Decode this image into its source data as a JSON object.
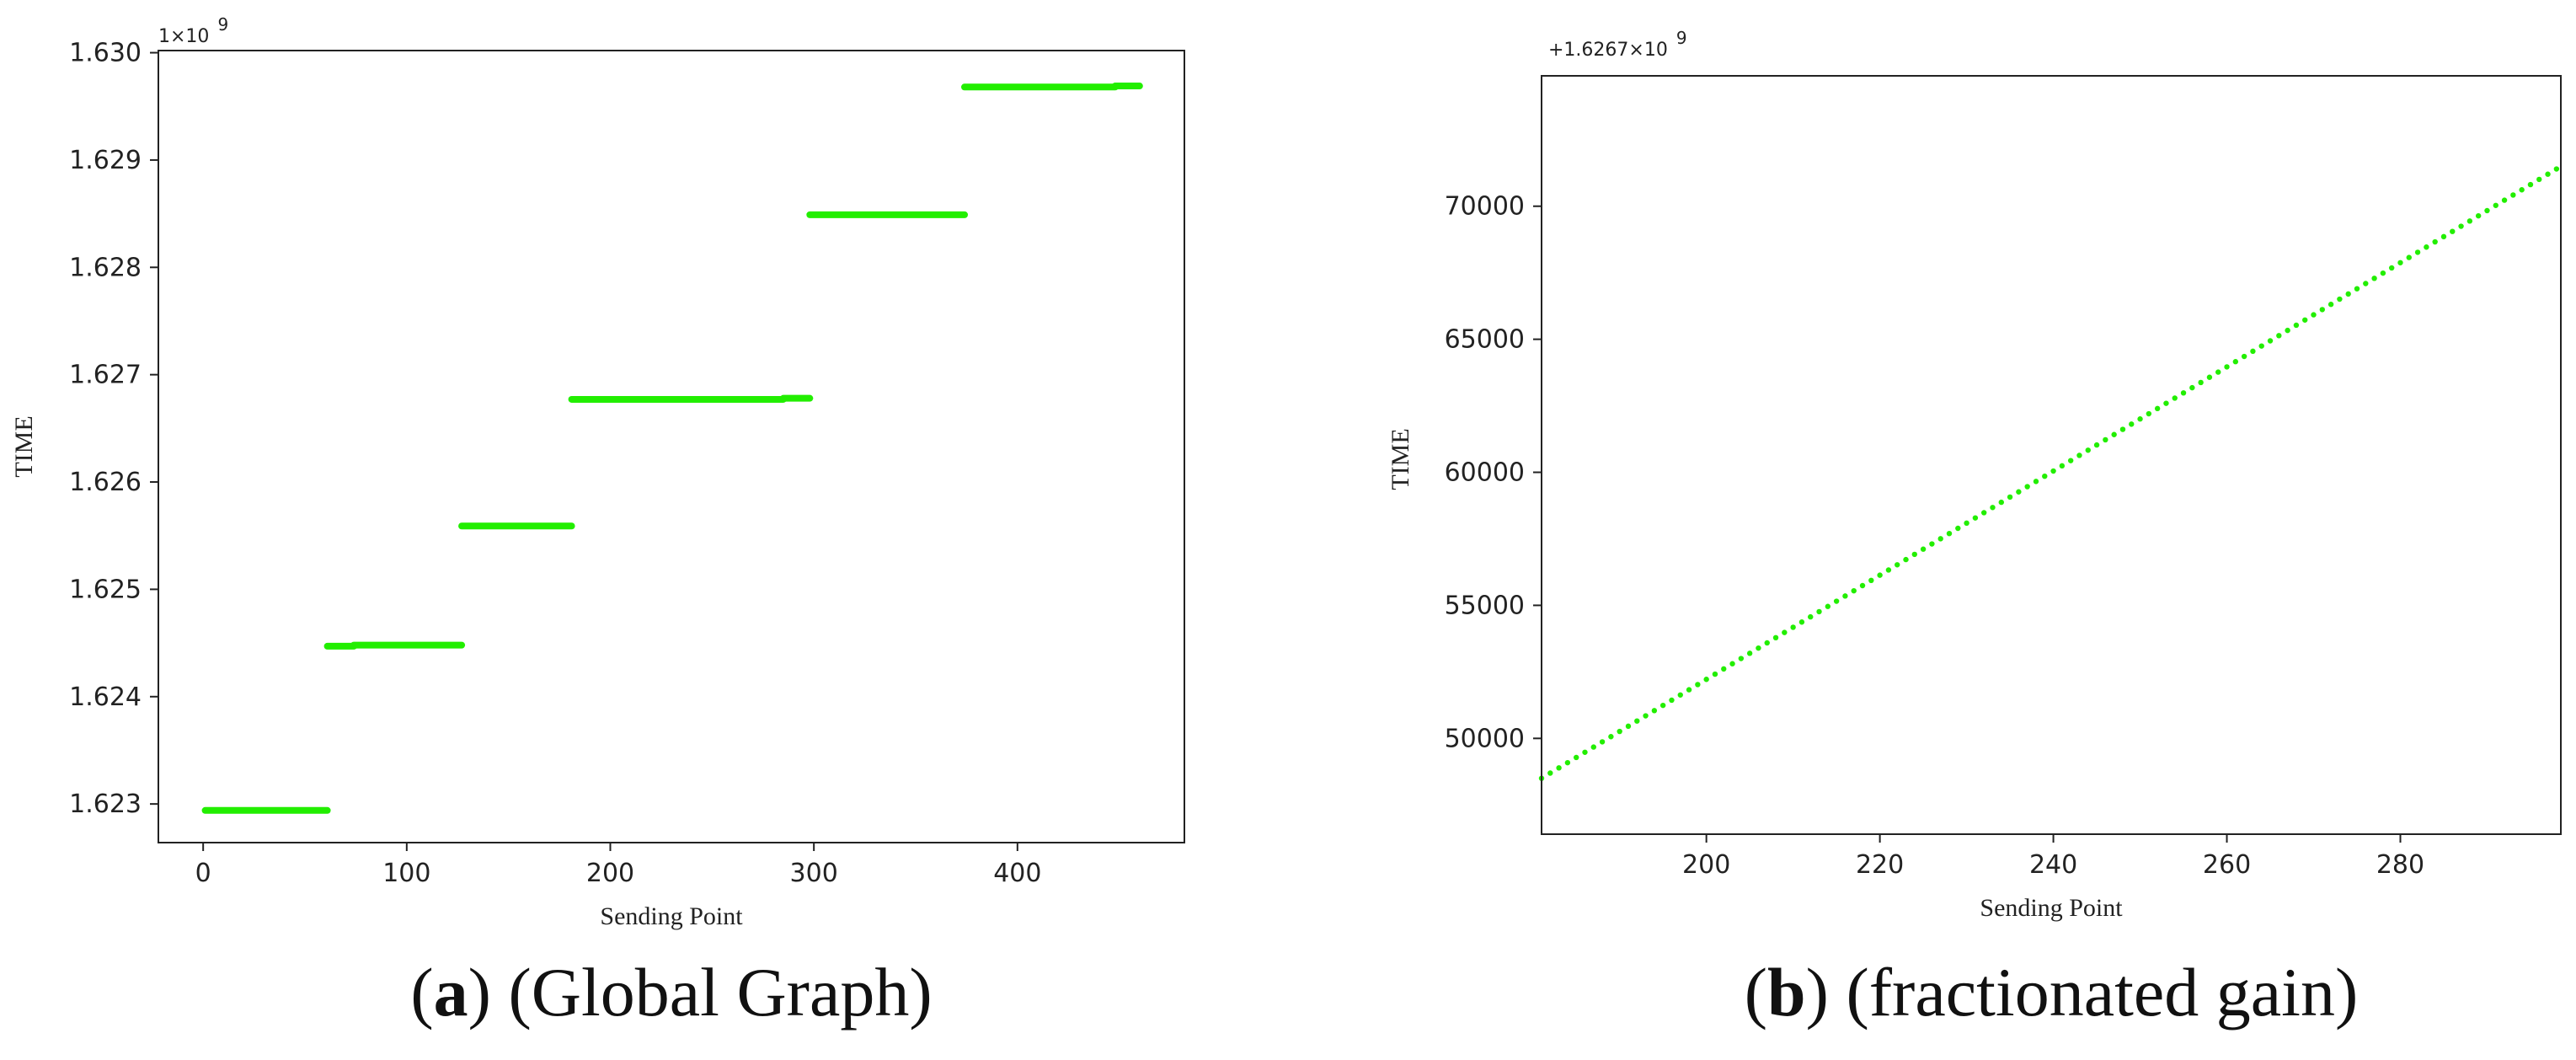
{
  "chart_data": [
    {
      "type": "scatter",
      "caption": {
        "letter": "a",
        "open": "(",
        "close": ")",
        "text": " (Global Graph)"
      },
      "offset_text": {
        "base": "1×10",
        "exp": "9"
      },
      "xlabel": "Sending Point",
      "ylabel": "TIME",
      "xlim": [
        -22,
        482
      ],
      "ylim": [
        1622640000.0,
        1630020000.0
      ],
      "xticks": [
        0,
        100,
        200,
        300,
        400
      ],
      "xtick_labels": [
        "0",
        "100",
        "200",
        "300",
        "400"
      ],
      "yticks": [
        1623000000.0,
        1624000000.0,
        1625000000.0,
        1626000000.0,
        1627000000.0,
        1628000000.0,
        1629000000.0,
        1630000000.0
      ],
      "ytick_labels": [
        "1.623",
        "1.624",
        "1.625",
        "1.626",
        "1.627",
        "1.628",
        "1.629",
        "1.630"
      ],
      "grid": false,
      "color": "#22ee00",
      "segments": [
        {
          "x_start": 1,
          "x_end": 61,
          "y": 1622940000.0
        },
        {
          "x_start": 61,
          "x_end": 74,
          "y": 1624470000.0
        },
        {
          "x_start": 74,
          "x_end": 127,
          "y": 1624480000.0
        },
        {
          "x_start": 127,
          "x_end": 181,
          "y": 1625590000.0
        },
        {
          "x_start": 181,
          "x_end": 285,
          "y": 1626770000.0
        },
        {
          "x_start": 285,
          "x_end": 298,
          "y": 1626780000.0
        },
        {
          "x_start": 298,
          "x_end": 374,
          "y": 1628490000.0
        },
        {
          "x_start": 374,
          "x_end": 448,
          "y": 1629680000.0
        },
        {
          "x_start": 448,
          "x_end": 460,
          "y": 1629690000.0
        }
      ]
    },
    {
      "type": "scatter",
      "caption": {
        "letter": "b",
        "open": "(",
        "close": ")",
        "text": " (fractionated gain)"
      },
      "offset_text": {
        "base": "+1.6267×10",
        "exp": "9"
      },
      "xlabel": "Sending Point",
      "ylabel": "TIME",
      "xlim": [
        181,
        298.5
      ],
      "ylim": [
        46400,
        74900
      ],
      "xticks": [
        200,
        220,
        240,
        260,
        280
      ],
      "xtick_labels": [
        "200",
        "220",
        "240",
        "260",
        "280"
      ],
      "yticks": [
        50000,
        55000,
        60000,
        65000,
        70000
      ],
      "ytick_labels": [
        "50000",
        "55000",
        "60000",
        "65000",
        "70000"
      ],
      "grid": false,
      "color": "#22ee00",
      "points": {
        "x_start": 181,
        "x_end": 298,
        "y_start": 48500,
        "y_end": 71400
      }
    }
  ]
}
